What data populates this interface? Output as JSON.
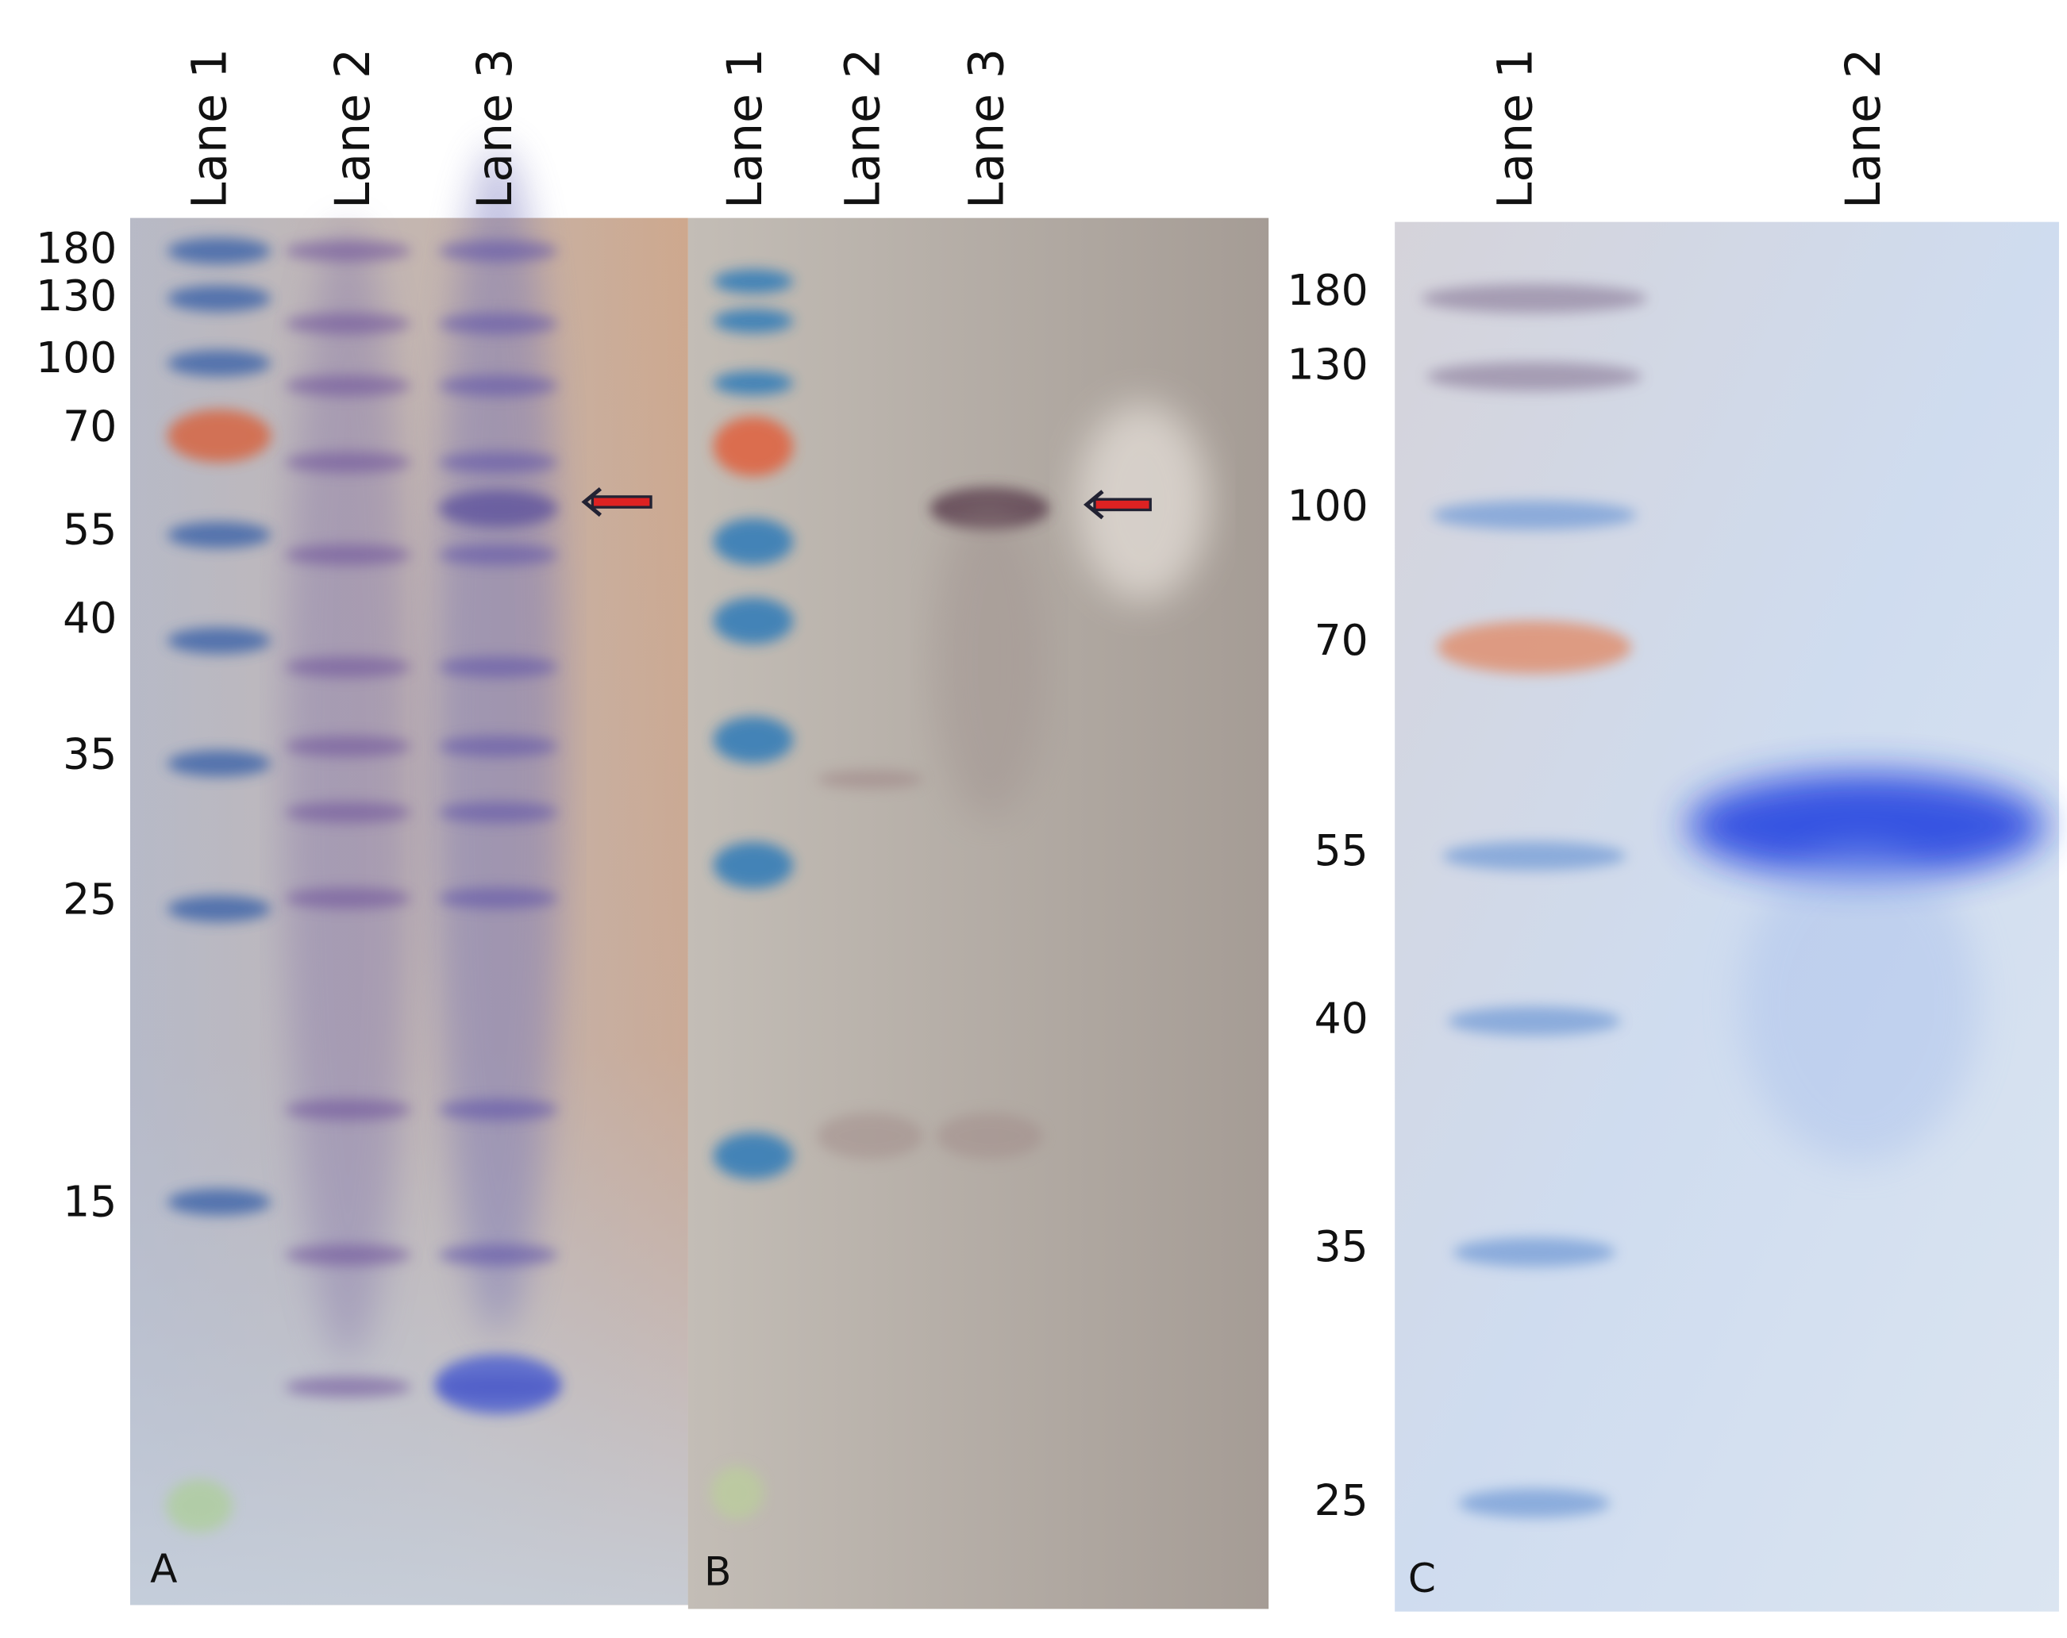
{
  "panels": [
    {
      "label": "A",
      "lanes": [
        "Lane 1",
        "Lane 2",
        "Lane 3"
      ],
      "markers": [
        180,
        130,
        100,
        70,
        55,
        40,
        35,
        25,
        15
      ]
    },
    {
      "label": "B",
      "lanes": [
        "Lane 1",
        "Lane 2",
        "Lane 3"
      ]
    },
    {
      "label": "C",
      "lanes": [
        "Lane 1",
        "Lane 2"
      ],
      "markers": [
        180,
        130,
        100,
        70,
        55,
        40,
        35,
        25
      ]
    }
  ]
}
